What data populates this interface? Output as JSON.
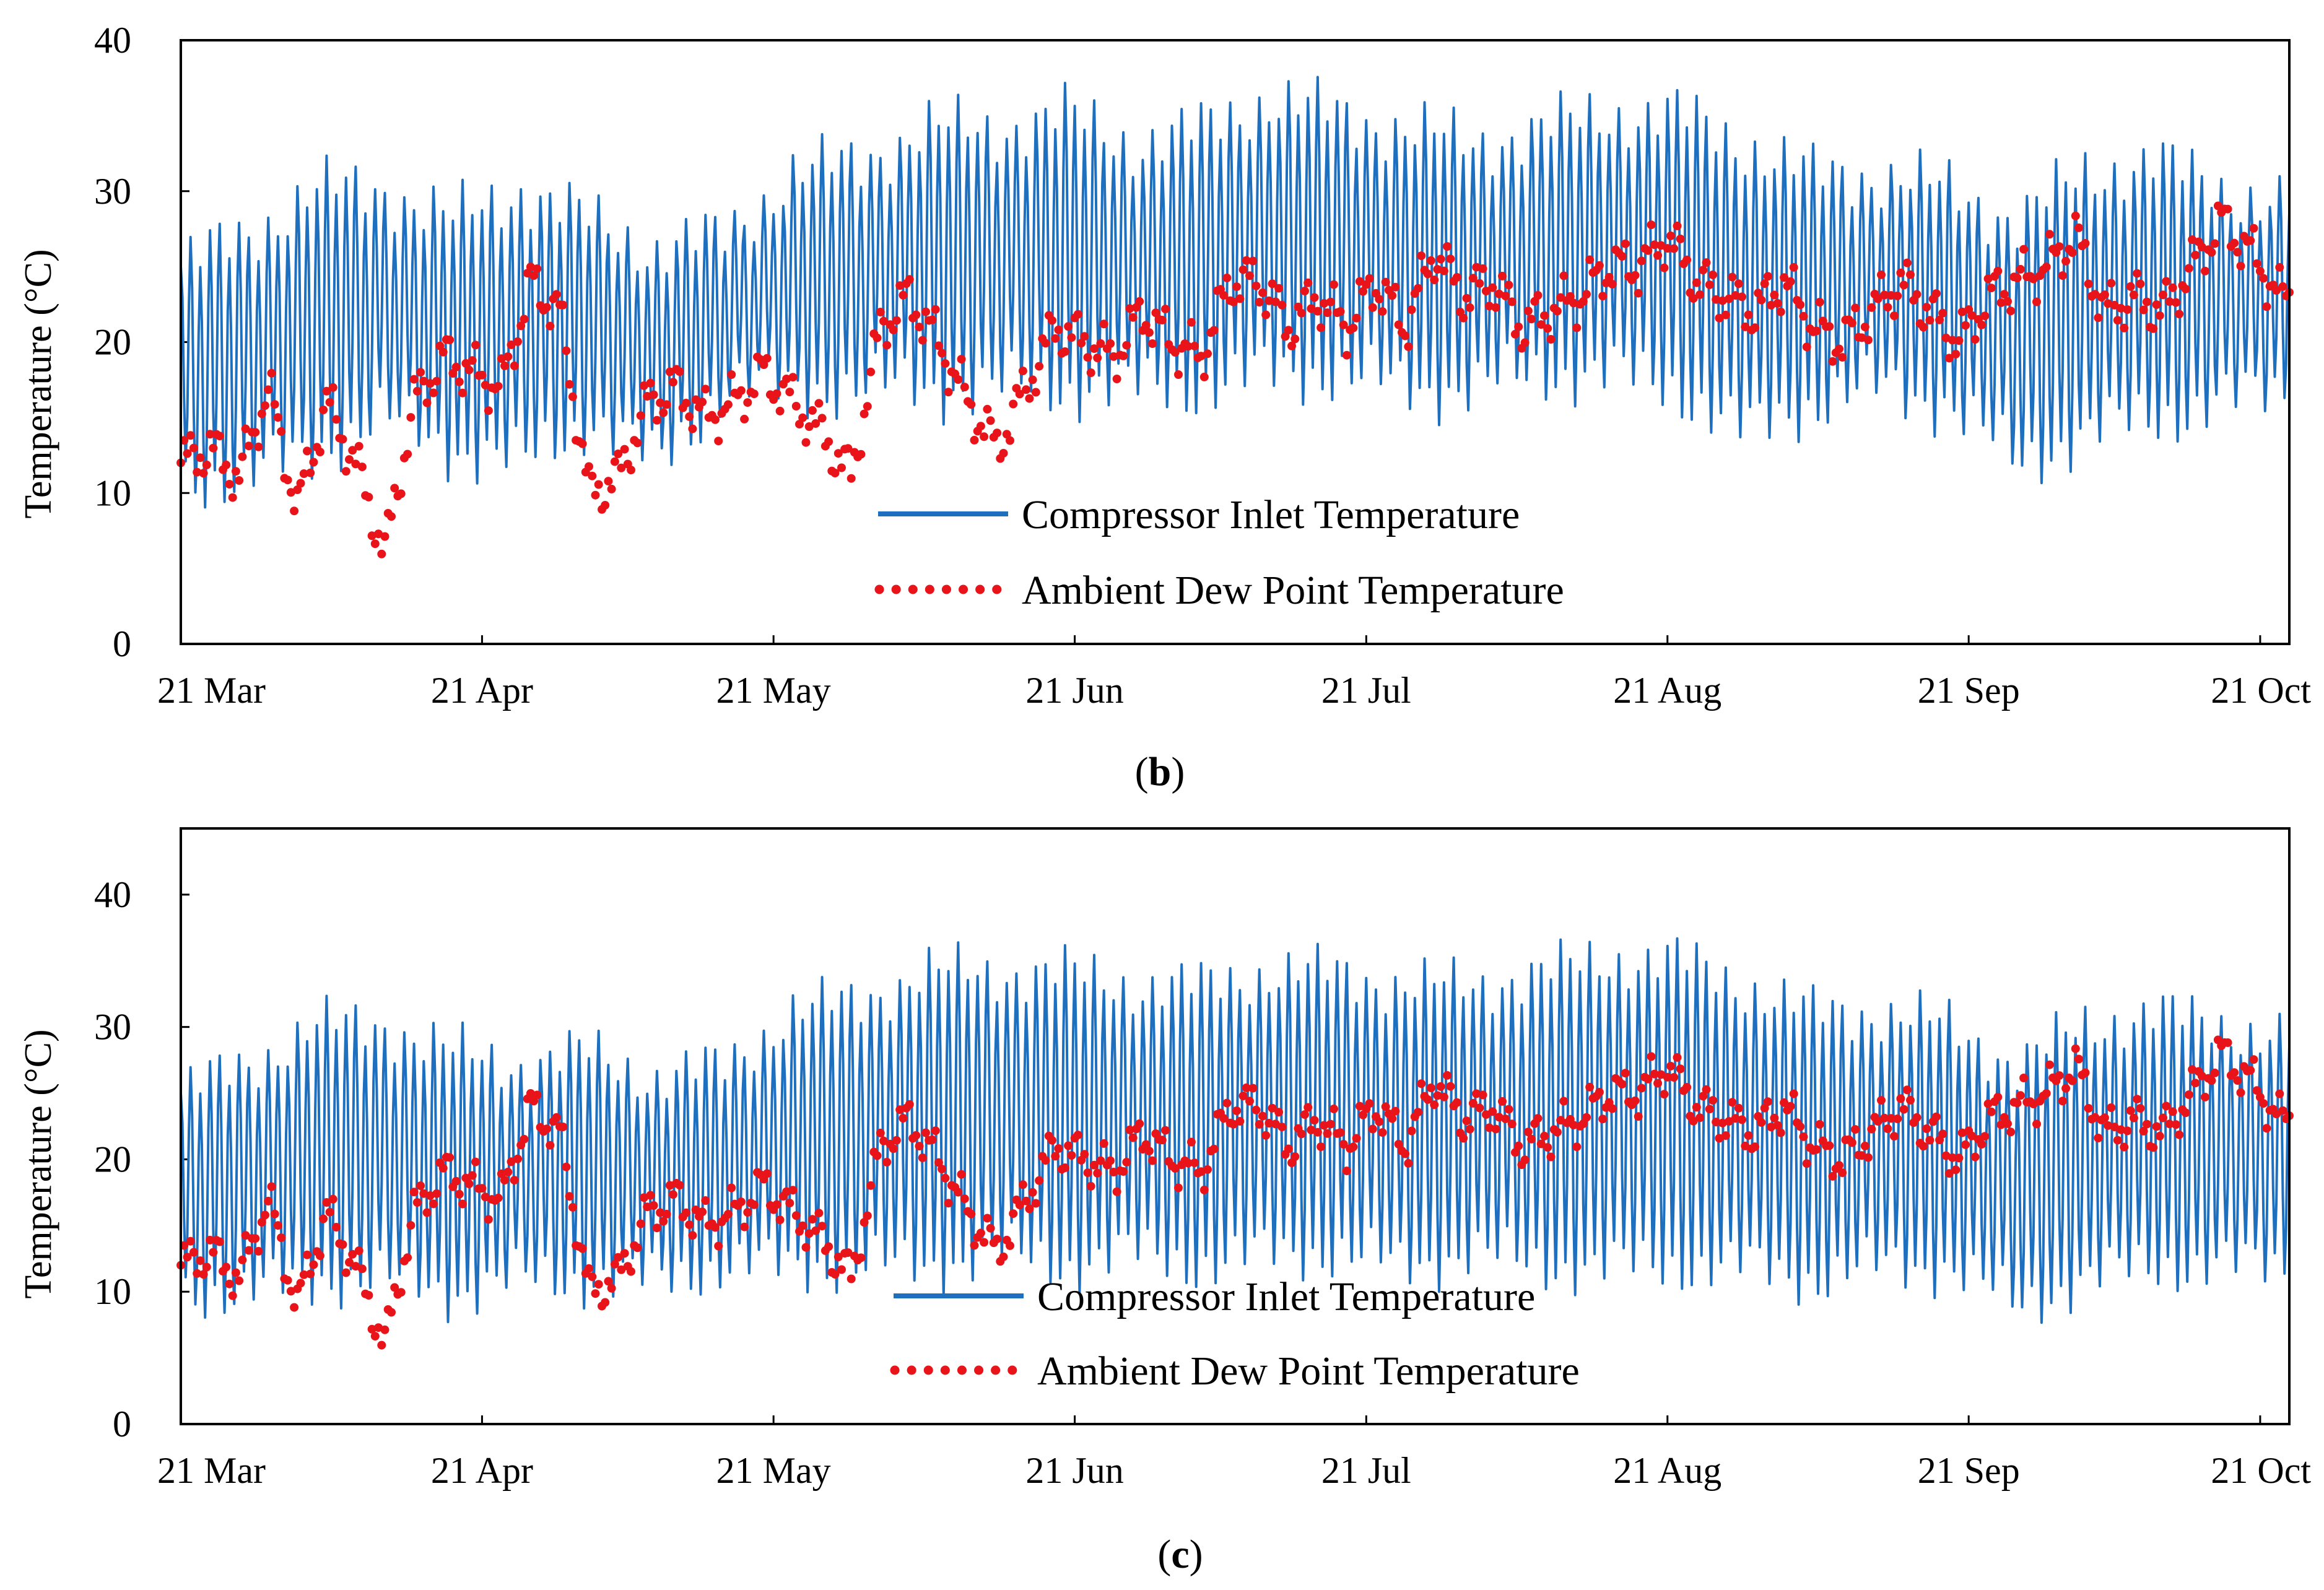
{
  "figure": {
    "panels": [
      {
        "label_open": "(",
        "label_letter": "b",
        "label_close": ")"
      },
      {
        "label_open": "(",
        "label_letter": "c",
        "label_close": ")"
      }
    ]
  },
  "colors": {
    "compressor_inlet": "#1f6fbf",
    "dew_point": "#e8141a",
    "axis": "#000000"
  },
  "chart_data": [
    {
      "type": "line",
      "panel": "b",
      "title": "",
      "xlabel": "",
      "ylabel": "Temperature (°C)",
      "ylim": [
        0,
        40
      ],
      "yticks": [
        0,
        10,
        20,
        30,
        40
      ],
      "xlim": [
        "2016-03-21",
        "2016-10-24"
      ],
      "xtick_labels": [
        "21 Mar",
        "21 Apr",
        "21 May",
        "21 Jun",
        "21 Jul",
        "21 Aug",
        "21 Sep",
        "21 Oct"
      ],
      "xtick_dates": [
        "2016-03-21",
        "2016-04-21",
        "2016-05-21",
        "2016-06-21",
        "2016-07-21",
        "2016-08-21",
        "2016-09-21",
        "2016-10-21"
      ],
      "grid": false,
      "legend": {
        "position": "bottom-center"
      },
      "series": [
        {
          "name": "Compressor Inlet Temperature",
          "style": "solid",
          "note": "daily min / daily max envelope of hourly values",
          "x": [
            "2016-03-21",
            "2016-03-28",
            "2016-04-04",
            "2016-04-11",
            "2016-04-18",
            "2016-04-25",
            "2016-05-02",
            "2016-05-09",
            "2016-05-16",
            "2016-05-23",
            "2016-05-30",
            "2016-06-06",
            "2016-06-13",
            "2016-06-20",
            "2016-06-27",
            "2016-07-04",
            "2016-07-11",
            "2016-07-18",
            "2016-07-25",
            "2016-08-01",
            "2016-08-08",
            "2016-08-15",
            "2016-08-22",
            "2016-08-29",
            "2016-09-05",
            "2016-09-12",
            "2016-09-19",
            "2016-09-26",
            "2016-10-03",
            "2016-10-10",
            "2016-10-17",
            "2016-10-24"
          ],
          "daily_max": [
            25,
            27,
            30,
            30,
            28,
            30,
            28,
            26,
            27,
            31,
            32,
            34,
            34,
            35,
            33,
            34,
            36,
            35,
            34,
            33,
            34,
            35,
            35,
            33,
            31,
            31,
            30,
            28,
            31,
            32,
            30,
            29
          ],
          "daily_min": [
            11,
            11,
            13,
            15,
            13,
            12,
            15,
            12,
            17,
            17,
            17,
            17,
            17,
            17,
            17,
            17,
            18,
            18,
            17,
            17,
            18,
            18,
            17,
            14,
            16,
            17,
            16,
            12,
            14,
            15,
            16,
            17
          ]
        },
        {
          "name": "Ambient Dew Point Temperature",
          "style": "dotted",
          "x": [
            "2016-03-21",
            "2016-03-24",
            "2016-03-27",
            "2016-03-30",
            "2016-04-02",
            "2016-04-05",
            "2016-04-08",
            "2016-04-11",
            "2016-04-14",
            "2016-04-17",
            "2016-04-20",
            "2016-04-23",
            "2016-04-26",
            "2016-04-29",
            "2016-05-02",
            "2016-05-05",
            "2016-05-08",
            "2016-05-11",
            "2016-05-14",
            "2016-05-17",
            "2016-05-20",
            "2016-05-23",
            "2016-05-26",
            "2016-05-29",
            "2016-06-01",
            "2016-06-04",
            "2016-06-07",
            "2016-06-10",
            "2016-06-13",
            "2016-06-16",
            "2016-06-19",
            "2016-06-22",
            "2016-06-25",
            "2016-06-28",
            "2016-07-01",
            "2016-07-04",
            "2016-07-07",
            "2016-07-10",
            "2016-07-13",
            "2016-07-16",
            "2016-07-19",
            "2016-07-22",
            "2016-07-25",
            "2016-07-28",
            "2016-07-31",
            "2016-08-03",
            "2016-08-06",
            "2016-08-09",
            "2016-08-12",
            "2016-08-15",
            "2016-08-18",
            "2016-08-21",
            "2016-08-24",
            "2016-08-27",
            "2016-08-30",
            "2016-09-02",
            "2016-09-05",
            "2016-09-08",
            "2016-09-11",
            "2016-09-14",
            "2016-09-17",
            "2016-09-20",
            "2016-09-23",
            "2016-09-26",
            "2016-09-29",
            "2016-10-02",
            "2016-10-05",
            "2016-10-08",
            "2016-10-11",
            "2016-10-14",
            "2016-10-17",
            "2016-10-20",
            "2016-10-23"
          ],
          "y": [
            12,
            13,
            11,
            17,
            9,
            16,
            12,
            6,
            16,
            19,
            18,
            17,
            24,
            22,
            10,
            11,
            16,
            17,
            15,
            16,
            18,
            16,
            14,
            11,
            21,
            23,
            20,
            16,
            13,
            17,
            21,
            20,
            19,
            22,
            20,
            19,
            24,
            24,
            21,
            23,
            21,
            24,
            21,
            26,
            23,
            24,
            21,
            22,
            23,
            25,
            25,
            27,
            24,
            23,
            22,
            24,
            21,
            20,
            22,
            24,
            22,
            20,
            23,
            24,
            25,
            27,
            22,
            23,
            22,
            25,
            28,
            26,
            23
          ]
        }
      ]
    },
    {
      "type": "line",
      "panel": "c",
      "title": "",
      "xlabel": "",
      "ylabel": "Temperature (°C)",
      "ylim": [
        0,
        45
      ],
      "yticks": [
        0,
        10,
        20,
        30,
        40
      ],
      "xlim": [
        "2016-03-21",
        "2016-10-24"
      ],
      "xtick_labels": [
        "21 Mar",
        "21 Apr",
        "21 May",
        "21 Jun",
        "21 Jul",
        "21 Aug",
        "21 Sep",
        "21 Oct"
      ],
      "xtick_dates": [
        "2016-03-21",
        "2016-04-21",
        "2016-05-21",
        "2016-06-21",
        "2016-07-21",
        "2016-08-21",
        "2016-09-21",
        "2016-10-21"
      ],
      "grid": false,
      "legend": {
        "position": "bottom-center"
      },
      "series": [
        {
          "name": "Compressor Inlet Temperature",
          "style": "solid",
          "note": "daily min / daily max envelope of hourly values",
          "x": [
            "2016-03-21",
            "2016-03-28",
            "2016-04-04",
            "2016-04-11",
            "2016-04-18",
            "2016-04-25",
            "2016-05-02",
            "2016-05-09",
            "2016-05-16",
            "2016-05-23",
            "2016-05-30",
            "2016-06-06",
            "2016-06-13",
            "2016-06-20",
            "2016-06-27",
            "2016-07-04",
            "2016-07-11",
            "2016-07-18",
            "2016-07-25",
            "2016-08-01",
            "2016-08-08",
            "2016-08-15",
            "2016-08-22",
            "2016-08-29",
            "2016-09-05",
            "2016-09-12",
            "2016-09-19",
            "2016-09-26",
            "2016-10-03",
            "2016-10-10",
            "2016-10-17",
            "2016-10-24"
          ],
          "daily_max": [
            25,
            27,
            30,
            30,
            28,
            27,
            28,
            26,
            27,
            31,
            32,
            34,
            34,
            34,
            33,
            33,
            34,
            34,
            33,
            33,
            34,
            35,
            35,
            33,
            31,
            31,
            30,
            27,
            30,
            31,
            30,
            29
          ],
          "daily_min": [
            10,
            10,
            11,
            11,
            10,
            11,
            11,
            11,
            12,
            12,
            12,
            12,
            13,
            12,
            13,
            12,
            13,
            13,
            12,
            13,
            12,
            12,
            12,
            12,
            11,
            12,
            12,
            9,
            11,
            12,
            12,
            12
          ]
        },
        {
          "name": "Ambient Dew Point Temperature",
          "style": "dotted",
          "x": [
            "2016-03-21",
            "2016-03-24",
            "2016-03-27",
            "2016-03-30",
            "2016-04-02",
            "2016-04-05",
            "2016-04-08",
            "2016-04-11",
            "2016-04-14",
            "2016-04-17",
            "2016-04-20",
            "2016-04-23",
            "2016-04-26",
            "2016-04-29",
            "2016-05-02",
            "2016-05-05",
            "2016-05-08",
            "2016-05-11",
            "2016-05-14",
            "2016-05-17",
            "2016-05-20",
            "2016-05-23",
            "2016-05-26",
            "2016-05-29",
            "2016-06-01",
            "2016-06-04",
            "2016-06-07",
            "2016-06-10",
            "2016-06-13",
            "2016-06-16",
            "2016-06-19",
            "2016-06-22",
            "2016-06-25",
            "2016-06-28",
            "2016-07-01",
            "2016-07-04",
            "2016-07-07",
            "2016-07-10",
            "2016-07-13",
            "2016-07-16",
            "2016-07-19",
            "2016-07-22",
            "2016-07-25",
            "2016-07-28",
            "2016-07-31",
            "2016-08-03",
            "2016-08-06",
            "2016-08-09",
            "2016-08-12",
            "2016-08-15",
            "2016-08-18",
            "2016-08-21",
            "2016-08-24",
            "2016-08-27",
            "2016-08-30",
            "2016-09-02",
            "2016-09-05",
            "2016-09-08",
            "2016-09-11",
            "2016-09-14",
            "2016-09-17",
            "2016-09-20",
            "2016-09-23",
            "2016-09-26",
            "2016-09-29",
            "2016-10-02",
            "2016-10-05",
            "2016-10-08",
            "2016-10-11",
            "2016-10-14",
            "2016-10-17",
            "2016-10-20",
            "2016-10-23"
          ],
          "y": [
            12,
            13,
            11,
            17,
            9,
            16,
            12,
            6,
            16,
            19,
            18,
            17,
            24,
            22,
            10,
            11,
            16,
            17,
            15,
            16,
            18,
            16,
            14,
            11,
            21,
            23,
            20,
            16,
            13,
            17,
            21,
            20,
            19,
            22,
            20,
            19,
            24,
            24,
            21,
            23,
            21,
            24,
            21,
            26,
            23,
            24,
            21,
            22,
            23,
            25,
            25,
            27,
            24,
            23,
            22,
            24,
            21,
            20,
            22,
            24,
            22,
            20,
            23,
            24,
            25,
            27,
            22,
            23,
            22,
            25,
            28,
            26,
            23
          ]
        }
      ]
    }
  ]
}
